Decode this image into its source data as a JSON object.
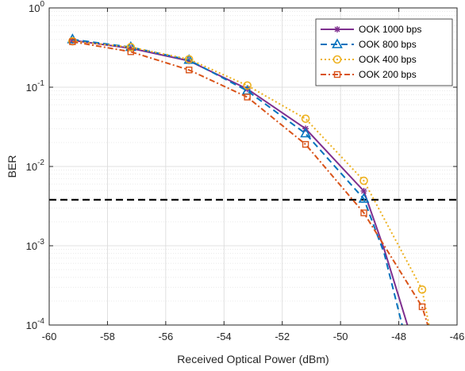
{
  "chart_data": {
    "type": "line",
    "xlabel": "Received Optical Power (dBm)",
    "ylabel": "BER",
    "xlim": [
      -60,
      -46
    ],
    "ylim_log10": [
      -4,
      0
    ],
    "y_scale": "log",
    "grid": true,
    "legend_position": "top-right",
    "x_ticks": [
      "-60",
      "-58",
      "-56",
      "-54",
      "-52",
      "-50",
      "-48",
      "-46"
    ],
    "y_ticks": [
      {
        "base": "10",
        "exp": "0"
      },
      {
        "base": "10",
        "exp": "-1"
      },
      {
        "base": "10",
        "exp": "-2"
      },
      {
        "base": "10",
        "exp": "-3"
      },
      {
        "base": "10",
        "exp": "-4"
      }
    ],
    "threshold": {
      "y": 0.0038,
      "color": "#000000",
      "style": "dashed"
    },
    "series": [
      {
        "name": "OOK 1000 bps",
        "color": "#7E2F8E",
        "dash": "",
        "marker": "asterisk",
        "x": [
          -59.2,
          -57.2,
          -55.2,
          -53.2,
          -51.2,
          -49.2
        ],
        "y": [
          0.39,
          0.31,
          0.215,
          0.095,
          0.03,
          0.0049
        ],
        "extend": [
          [
            -48.5,
            0.0009
          ],
          [
            -47.6,
            7.5e-05
          ]
        ]
      },
      {
        "name": "OOK 800 bps",
        "color": "#0072BD",
        "dash": "8,5",
        "marker": "triangle",
        "x": [
          -59.2,
          -57.2,
          -55.2,
          -53.2,
          -51.2,
          -49.2
        ],
        "y": [
          0.4,
          0.32,
          0.22,
          0.09,
          0.026,
          0.0039
        ],
        "extend": [
          [
            -48.5,
            0.0008
          ],
          [
            -47.8,
            7.5e-05
          ]
        ]
      },
      {
        "name": "OOK 400 bps",
        "color": "#EDB120",
        "dash": "2,3",
        "marker": "circle",
        "x": [
          -59.2,
          -57.2,
          -55.2,
          -53.2,
          -51.2,
          -49.2,
          -47.2
        ],
        "y": [
          0.38,
          0.32,
          0.225,
          0.105,
          0.04,
          0.0066,
          0.00028
        ],
        "extend": [
          [
            -46.9,
            7.5e-05
          ]
        ]
      },
      {
        "name": "OOK 200 bps",
        "color": "#D95319",
        "dash": "7,3,2,3",
        "marker": "square",
        "x": [
          -59.2,
          -57.2,
          -55.2,
          -53.2,
          -51.2,
          -49.2,
          -47.2
        ],
        "y": [
          0.375,
          0.28,
          0.165,
          0.075,
          0.019,
          0.0026,
          0.00017
        ],
        "extend": [
          [
            -46.9,
            7.5e-05
          ]
        ]
      }
    ]
  }
}
